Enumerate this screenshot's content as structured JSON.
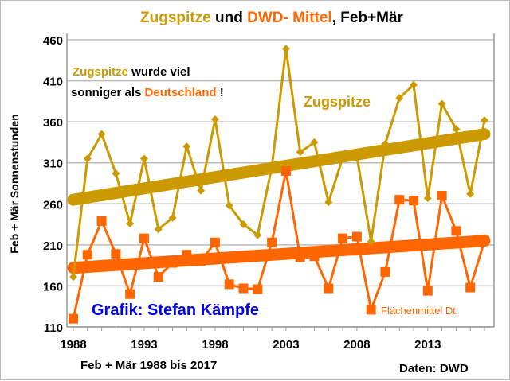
{
  "chart_data": {
    "type": "line",
    "title_parts": [
      {
        "text": "Zugspitze",
        "color": "#CC9900"
      },
      {
        "text": " und ",
        "color": "#000000"
      },
      {
        "text": "DWD- Mittel",
        "color": "#FF6600"
      },
      {
        "text": ", Feb+Mär",
        "color": "#000000"
      }
    ],
    "ylabel": "Feb + Mär  Sonnenstunden",
    "xlabel": "Feb + Mär 1988 bis 2017",
    "ylim": [
      110,
      460
    ],
    "yticks": [
      110,
      160,
      210,
      260,
      310,
      360,
      410,
      460
    ],
    "xticks": [
      1988,
      1993,
      1998,
      2003,
      2008,
      2013
    ],
    "grid": true,
    "x": [
      1988,
      1989,
      1990,
      1991,
      1992,
      1993,
      1994,
      1995,
      1996,
      1997,
      1998,
      1999,
      2000,
      2001,
      2002,
      2003,
      2004,
      2005,
      2006,
      2007,
      2008,
      2009,
      2010,
      2011,
      2012,
      2013,
      2014,
      2015,
      2016,
      2017
    ],
    "series": [
      {
        "name": "Zugspitze",
        "color": "#CC9900",
        "marker": "diamond",
        "values": [
          171,
          315,
          345,
          297,
          236,
          315,
          229,
          243,
          330,
          276,
          363,
          258,
          235,
          222,
          305,
          449,
          323,
          335,
          262,
          316,
          318,
          214,
          333,
          389,
          405,
          267,
          382,
          351,
          272,
          362
        ],
        "trend": [
          265,
          345
        ]
      },
      {
        "name": "Flächenmittel Dt.",
        "color": "#FF6600",
        "marker": "square",
        "values": [
          120,
          198,
          239,
          199,
          150,
          218,
          171,
          188,
          198,
          190,
          213,
          162,
          157,
          156,
          213,
          300,
          195,
          196,
          157,
          218,
          220,
          131,
          177,
          265,
          264,
          154,
          270,
          227,
          158,
          215
        ],
        "trend": [
          182,
          215
        ]
      }
    ],
    "annotations": {
      "line1_a": "Zugspitze",
      "line1_b": " wurde viel",
      "line2_a": "sonniger als ",
      "line2_b": "Deutschland",
      "line2_c": " !",
      "author": "Grafik: Stefan Kämpfe",
      "source": "Daten: DWD"
    }
  }
}
